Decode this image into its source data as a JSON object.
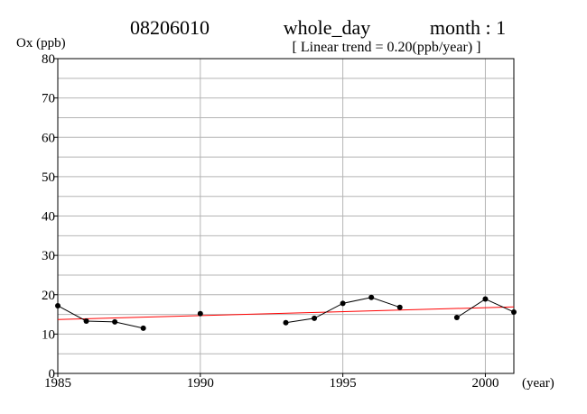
{
  "header": {
    "station": "08206010",
    "period": "whole_day",
    "month_label": "month : 1",
    "trend_label": "[ Linear trend = 0.20(ppb/year) ]"
  },
  "chart_data": {
    "type": "line",
    "ylabel": "Ox (ppb)",
    "xlabel": "(year)",
    "xlim": [
      1985,
      2001
    ],
    "ylim": [
      0,
      80
    ],
    "x_ticks": [
      1985,
      1990,
      1995,
      2000
    ],
    "y_ticks": [
      0,
      10,
      20,
      30,
      40,
      50,
      60,
      70,
      80
    ],
    "grid": true,
    "colors": {
      "series": "#000000",
      "trend": "#ff0000",
      "grid": "#b4b4b4"
    },
    "series": [
      {
        "x": [
          1985,
          1986,
          1987,
          1988,
          1990,
          1993,
          1994,
          1995,
          1996,
          1997,
          1999,
          2000,
          2001
        ],
        "values": [
          17.2,
          13.3,
          13.1,
          11.5,
          15.2,
          12.9,
          14.0,
          17.8,
          19.3,
          16.8,
          14.2,
          18.9,
          15.6
        ],
        "segments": [
          [
            0,
            3
          ],
          [
            4,
            4
          ],
          [
            5,
            9
          ],
          [
            10,
            12
          ]
        ]
      }
    ],
    "trend": {
      "x": [
        1985,
        2001
      ],
      "values": [
        13.7,
        16.9
      ]
    }
  }
}
